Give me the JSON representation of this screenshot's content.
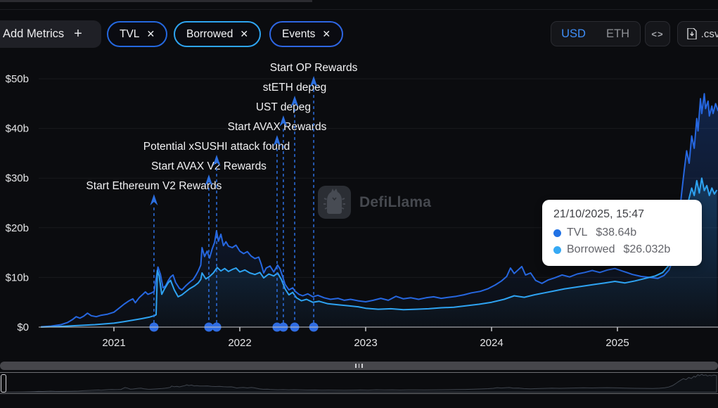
{
  "toolbar": {
    "add_metrics_label": "Add Metrics",
    "plus_glyph": "+",
    "close_glyph": "✕",
    "pills": [
      {
        "label": "TVL",
        "color": "#2468df"
      },
      {
        "label": "Borrowed",
        "color": "#2ea5f2"
      },
      {
        "label": "Events",
        "color": "#2e66e3"
      }
    ],
    "currency_toggle": {
      "options": [
        "USD",
        "ETH"
      ],
      "selected": "USD"
    },
    "embed_icon_glyph": "<>",
    "csv_label": ".csv"
  },
  "watermark": {
    "text": "DefiLlama"
  },
  "tooltip": {
    "date": "21/10/2025, 15:47",
    "rows": [
      {
        "label": "TVL",
        "value": "$38.64b",
        "color": "#2172E5"
      },
      {
        "label": "Borrowed",
        "value": "$26.032b",
        "color": "#36A9F4"
      }
    ]
  },
  "chart_data": {
    "type": "line",
    "title": "",
    "xlabel": "",
    "ylabel": "",
    "ylim": [
      0,
      53
    ],
    "xlim": [
      2020.42,
      2025.8
    ],
    "grid": true,
    "y_ticks": [
      {
        "label": "$0",
        "value": 0
      },
      {
        "label": "$10b",
        "value": 10
      },
      {
        "label": "$20b",
        "value": 20
      },
      {
        "label": "$30b",
        "value": 30
      },
      {
        "label": "$40b",
        "value": 40
      },
      {
        "label": "$50b",
        "value": 50
      }
    ],
    "x_ticks": [
      2021,
      2022,
      2023,
      2024,
      2025
    ],
    "accent_colors": {
      "event": "#2c6fe0",
      "axis": "#c7c8cc",
      "grid": "rgba(255,255,255,0.06)"
    },
    "series": [
      {
        "name": "TVL",
        "color": "#2667e0",
        "fill_from": "rgba(32,92,205,0.30)",
        "fill_to": "rgba(32,92,205,0.02)",
        "points": [
          [
            2020.42,
            0.05
          ],
          [
            2020.5,
            0.2
          ],
          [
            2020.58,
            0.5
          ],
          [
            2020.63,
            0.9
          ],
          [
            2020.67,
            1.5
          ],
          [
            2020.7,
            2.1
          ],
          [
            2020.73,
            1.8
          ],
          [
            2020.76,
            2.2
          ],
          [
            2020.79,
            2.8
          ],
          [
            2020.82,
            2.3
          ],
          [
            2020.86,
            2.1
          ],
          [
            2020.9,
            2.4
          ],
          [
            2020.95,
            2.6
          ],
          [
            2021.0,
            3.0
          ],
          [
            2021.04,
            3.8
          ],
          [
            2021.08,
            4.6
          ],
          [
            2021.12,
            5.3
          ],
          [
            2021.15,
            5.7
          ],
          [
            2021.17,
            4.9
          ],
          [
            2021.2,
            5.9
          ],
          [
            2021.23,
            6.6
          ],
          [
            2021.25,
            7.1
          ],
          [
            2021.27,
            6.6
          ],
          [
            2021.3,
            6.9
          ],
          [
            2021.32,
            7.2
          ],
          [
            2021.33,
            9.0
          ],
          [
            2021.35,
            12.1
          ],
          [
            2021.37,
            10.6
          ],
          [
            2021.39,
            7.9
          ],
          [
            2021.41,
            8.3
          ],
          [
            2021.43,
            9.3
          ],
          [
            2021.45,
            10.1
          ],
          [
            2021.47,
            10.5
          ],
          [
            2021.49,
            9.0
          ],
          [
            2021.52,
            7.8
          ],
          [
            2021.54,
            7.5
          ],
          [
            2021.57,
            8.3
          ],
          [
            2021.6,
            9.0
          ],
          [
            2021.63,
            9.6
          ],
          [
            2021.65,
            10.4
          ],
          [
            2021.67,
            11.3
          ],
          [
            2021.69,
            12.5
          ],
          [
            2021.7,
            16.0
          ],
          [
            2021.72,
            14.2
          ],
          [
            2021.74,
            15.3
          ],
          [
            2021.76,
            13.9
          ],
          [
            2021.78,
            15.7
          ],
          [
            2021.8,
            17.1
          ],
          [
            2021.815,
            19.4
          ],
          [
            2021.83,
            17.3
          ],
          [
            2021.85,
            18.7
          ],
          [
            2021.87,
            16.4
          ],
          [
            2021.89,
            17.2
          ],
          [
            2021.91,
            16.3
          ],
          [
            2021.94,
            16.0
          ],
          [
            2021.97,
            16.5
          ],
          [
            2022.0,
            15.3
          ],
          [
            2022.03,
            14.8
          ],
          [
            2022.06,
            15.2
          ],
          [
            2022.09,
            14.3
          ],
          [
            2022.12,
            13.8
          ],
          [
            2022.15,
            14.1
          ],
          [
            2022.17,
            12.7
          ],
          [
            2022.19,
            10.9
          ],
          [
            2022.21,
            11.9
          ],
          [
            2022.24,
            12.3
          ],
          [
            2022.27,
            11.1
          ],
          [
            2022.3,
            12.5
          ],
          [
            2022.32,
            11.7
          ],
          [
            2022.34,
            10.2
          ],
          [
            2022.36,
            8.6
          ],
          [
            2022.39,
            7.5
          ],
          [
            2022.42,
            7.9
          ],
          [
            2022.44,
            7.2
          ],
          [
            2022.47,
            6.6
          ],
          [
            2022.5,
            6.3
          ],
          [
            2022.54,
            6.7
          ],
          [
            2022.58,
            6.1
          ],
          [
            2022.62,
            6.4
          ],
          [
            2022.67,
            5.9
          ],
          [
            2022.72,
            5.6
          ],
          [
            2022.78,
            5.8
          ],
          [
            2022.83,
            5.4
          ],
          [
            2022.88,
            5.6
          ],
          [
            2022.94,
            5.3
          ],
          [
            2023.0,
            5.1
          ],
          [
            2023.06,
            5.4
          ],
          [
            2023.12,
            5.8
          ],
          [
            2023.18,
            5.4
          ],
          [
            2023.24,
            6.2
          ],
          [
            2023.3,
            5.7
          ],
          [
            2023.36,
            5.9
          ],
          [
            2023.42,
            5.6
          ],
          [
            2023.48,
            5.9
          ],
          [
            2023.54,
            6.1
          ],
          [
            2023.6,
            5.8
          ],
          [
            2023.66,
            6.0
          ],
          [
            2023.72,
            6.2
          ],
          [
            2023.78,
            6.5
          ],
          [
            2023.84,
            6.9
          ],
          [
            2023.91,
            7.2
          ],
          [
            2023.97,
            7.7
          ],
          [
            2024.03,
            8.5
          ],
          [
            2024.08,
            9.3
          ],
          [
            2024.12,
            10.2
          ],
          [
            2024.15,
            11.9
          ],
          [
            2024.18,
            10.8
          ],
          [
            2024.21,
            11.5
          ],
          [
            2024.24,
            12.2
          ],
          [
            2024.27,
            10.5
          ],
          [
            2024.31,
            10.9
          ],
          [
            2024.35,
            9.4
          ],
          [
            2024.4,
            8.8
          ],
          [
            2024.45,
            9.5
          ],
          [
            2024.5,
            9.9
          ],
          [
            2024.56,
            10.5
          ],
          [
            2024.62,
            10.1
          ],
          [
            2024.68,
            10.7
          ],
          [
            2024.74,
            11.0
          ],
          [
            2024.8,
            11.4
          ],
          [
            2024.86,
            11.0
          ],
          [
            2024.92,
            11.5
          ],
          [
            2024.98,
            11.8
          ],
          [
            2025.05,
            11.2
          ],
          [
            2025.12,
            10.6
          ],
          [
            2025.19,
            10.2
          ],
          [
            2025.26,
            10.0
          ],
          [
            2025.32,
            9.8
          ],
          [
            2025.37,
            10.4
          ],
          [
            2025.41,
            11.5
          ],
          [
            2025.44,
            13.5
          ],
          [
            2025.47,
            17.5
          ],
          [
            2025.49,
            22.0
          ],
          [
            2025.51,
            27.0
          ],
          [
            2025.53,
            31.5
          ],
          [
            2025.55,
            35.5
          ],
          [
            2025.57,
            33.0
          ],
          [
            2025.59,
            38.5
          ],
          [
            2025.61,
            36.0
          ],
          [
            2025.63,
            42.0
          ],
          [
            2025.64,
            39.5
          ],
          [
            2025.66,
            46.0
          ],
          [
            2025.67,
            43.0
          ],
          [
            2025.69,
            47.0
          ],
          [
            2025.7,
            44.0
          ],
          [
            2025.72,
            45.5
          ],
          [
            2025.73,
            42.5
          ],
          [
            2025.75,
            44.5
          ],
          [
            2025.76,
            43.0
          ],
          [
            2025.78,
            45.0
          ],
          [
            2025.8,
            43.5
          ]
        ]
      },
      {
        "name": "Borrowed",
        "color": "#2ea3f2",
        "fill_from": "rgba(46,163,242,0.22)",
        "fill_to": "rgba(46,163,242,0.02)",
        "points": [
          [
            2020.42,
            0.02
          ],
          [
            2020.55,
            0.1
          ],
          [
            2020.7,
            0.3
          ],
          [
            2020.85,
            0.5
          ],
          [
            2021.0,
            0.8
          ],
          [
            2021.08,
            1.1
          ],
          [
            2021.15,
            1.4
          ],
          [
            2021.22,
            1.7
          ],
          [
            2021.28,
            2.0
          ],
          [
            2021.32,
            2.3
          ],
          [
            2021.335,
            2.5
          ],
          [
            2021.345,
            11.4
          ],
          [
            2021.36,
            10.3
          ],
          [
            2021.38,
            6.6
          ],
          [
            2021.4,
            7.6
          ],
          [
            2021.43,
            8.9
          ],
          [
            2021.45,
            9.4
          ],
          [
            2021.48,
            7.5
          ],
          [
            2021.51,
            6.1
          ],
          [
            2021.54,
            6.5
          ],
          [
            2021.57,
            7.1
          ],
          [
            2021.6,
            7.7
          ],
          [
            2021.64,
            8.3
          ],
          [
            2021.67,
            8.9
          ],
          [
            2021.69,
            9.6
          ],
          [
            2021.7,
            10.9
          ],
          [
            2021.73,
            9.7
          ],
          [
            2021.76,
            10.2
          ],
          [
            2021.79,
            10.9
          ],
          [
            2021.82,
            12.0
          ],
          [
            2021.85,
            11.3
          ],
          [
            2021.88,
            11.8
          ],
          [
            2021.91,
            11.2
          ],
          [
            2021.94,
            11.6
          ],
          [
            2021.97,
            11.9
          ],
          [
            2022.0,
            11.1
          ],
          [
            2022.04,
            11.5
          ],
          [
            2022.08,
            10.9
          ],
          [
            2022.12,
            10.6
          ],
          [
            2022.16,
            11.0
          ],
          [
            2022.19,
            9.9
          ],
          [
            2022.23,
            10.7
          ],
          [
            2022.27,
            10.3
          ],
          [
            2022.3,
            10.9
          ],
          [
            2022.33,
            9.6
          ],
          [
            2022.36,
            7.7
          ],
          [
            2022.39,
            6.5
          ],
          [
            2022.42,
            7.0
          ],
          [
            2022.45,
            5.9
          ],
          [
            2022.49,
            5.3
          ],
          [
            2022.53,
            5.6
          ],
          [
            2022.58,
            5.0
          ],
          [
            2022.63,
            5.2
          ],
          [
            2022.7,
            4.7
          ],
          [
            2022.78,
            4.5
          ],
          [
            2022.86,
            4.3
          ],
          [
            2022.94,
            4.1
          ],
          [
            2023.0,
            3.8
          ],
          [
            2023.1,
            3.6
          ],
          [
            2023.2,
            3.7
          ],
          [
            2023.3,
            3.5
          ],
          [
            2023.4,
            3.6
          ],
          [
            2023.5,
            3.7
          ],
          [
            2023.6,
            3.9
          ],
          [
            2023.7,
            4.0
          ],
          [
            2023.8,
            4.3
          ],
          [
            2023.9,
            4.6
          ],
          [
            2024.0,
            5.0
          ],
          [
            2024.1,
            5.6
          ],
          [
            2024.18,
            6.3
          ],
          [
            2024.26,
            6.0
          ],
          [
            2024.34,
            6.5
          ],
          [
            2024.42,
            6.9
          ],
          [
            2024.5,
            7.3
          ],
          [
            2024.58,
            7.7
          ],
          [
            2024.66,
            8.0
          ],
          [
            2024.74,
            8.3
          ],
          [
            2024.82,
            8.6
          ],
          [
            2024.9,
            8.9
          ],
          [
            2024.98,
            9.2
          ],
          [
            2025.06,
            8.9
          ],
          [
            2025.14,
            9.3
          ],
          [
            2025.22,
            9.8
          ],
          [
            2025.3,
            10.3
          ],
          [
            2025.36,
            11.0
          ],
          [
            2025.41,
            12.5
          ],
          [
            2025.45,
            15.0
          ],
          [
            2025.48,
            17.5
          ],
          [
            2025.51,
            20.0
          ],
          [
            2025.54,
            23.0
          ],
          [
            2025.57,
            26.0
          ],
          [
            2025.59,
            28.0
          ],
          [
            2025.61,
            26.5
          ],
          [
            2025.63,
            29.5
          ],
          [
            2025.65,
            27.0
          ],
          [
            2025.67,
            30.0
          ],
          [
            2025.69,
            27.5
          ],
          [
            2025.71,
            28.5
          ],
          [
            2025.73,
            26.5
          ],
          [
            2025.75,
            28.0
          ],
          [
            2025.77,
            26.8
          ],
          [
            2025.79,
            27.6
          ]
        ]
      }
    ],
    "events": [
      {
        "label": "Start Ethereum V2 Rewards",
        "x": 2021.318,
        "row": 6
      },
      {
        "label": "Start AVAX V2 Rewards",
        "x": 2021.754,
        "row": 5
      },
      {
        "label": "Potential xSUSHI attack found",
        "x": 2021.816,
        "row": 4
      },
      {
        "label": "Start AVAX Rewards",
        "x": 2022.296,
        "row": 3
      },
      {
        "label": "UST depeg",
        "x": 2022.346,
        "row": 2
      },
      {
        "label": "stETH depeg",
        "x": 2022.436,
        "row": 1
      },
      {
        "label": "Start OP Rewards",
        "x": 2022.587,
        "row": 0
      }
    ]
  }
}
